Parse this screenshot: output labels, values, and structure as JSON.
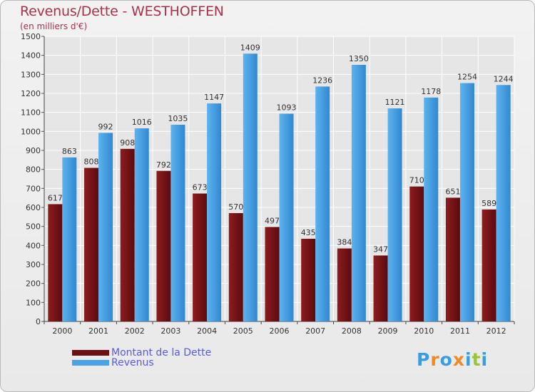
{
  "title": "Revenus/Dette - WESTHOFFEN",
  "subtitle": "(en milliers d'€)",
  "chart_data": {
    "type": "bar",
    "categories": [
      "2000",
      "2001",
      "2002",
      "2003",
      "2004",
      "2005",
      "2006",
      "2007",
      "2008",
      "2009",
      "2010",
      "2011",
      "2012"
    ],
    "series": [
      {
        "name": "Montant de la Dette",
        "values": [
          617,
          808,
          908,
          792,
          673,
          570,
          497,
          435,
          384,
          347,
          710,
          651,
          589
        ],
        "color": "#7a1417"
      },
      {
        "name": "Revenus",
        "values": [
          863,
          992,
          1016,
          1035,
          1147,
          1409,
          1093,
          1236,
          1350,
          1121,
          1178,
          1254,
          1244
        ],
        "color": "#4aa3e6"
      }
    ],
    "ylim": [
      0,
      1500
    ],
    "yticks": [
      0,
      100,
      200,
      300,
      400,
      500,
      600,
      700,
      800,
      900,
      1000,
      1100,
      1200,
      1300,
      1400,
      1500
    ],
    "grid": true,
    "legend_position": "bottom-left"
  },
  "legend": [
    {
      "label": "Montant de la Dette",
      "color": "#7a1417"
    },
    {
      "label": "Revenus",
      "color": "#4aa3e6"
    }
  ],
  "logo": {
    "text": "Proxiti",
    "letter_colors": [
      "#3a9de0",
      "#f08a24",
      "#3a9de0",
      "#f08a24",
      "#3a9de0",
      "#9ac43a",
      "#3a9de0"
    ]
  }
}
